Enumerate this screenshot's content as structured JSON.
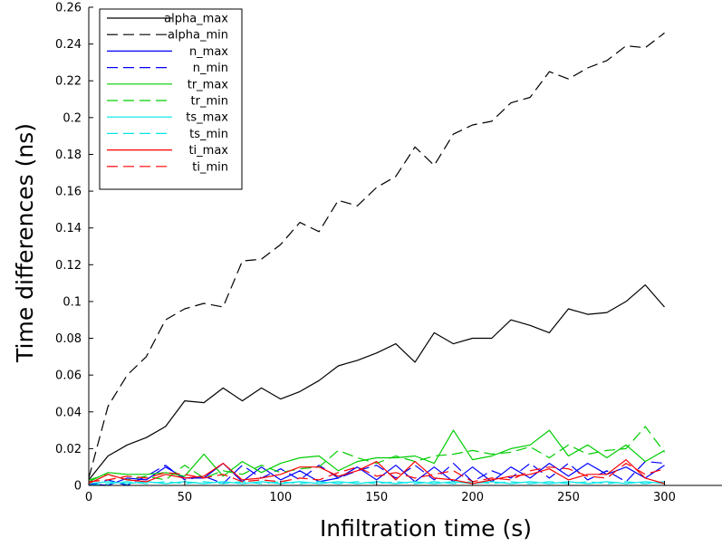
{
  "chart_data": {
    "type": "line",
    "title": "",
    "xlabel": "Infiltration time (s)",
    "ylabel": "Time differences (ns)",
    "xlim": [
      0,
      330
    ],
    "ylim": [
      0,
      0.26
    ],
    "xticks": [
      0,
      50,
      100,
      150,
      200,
      250,
      300
    ],
    "xtick_labels": [
      "0",
      "50",
      "100",
      "150",
      "200",
      "250",
      "300"
    ],
    "yticks": [
      0,
      0.02,
      0.04,
      0.06,
      0.08,
      0.1,
      0.12,
      0.14,
      0.16,
      0.18,
      0.2,
      0.22,
      0.24,
      0.26
    ],
    "ytick_labels": [
      "0",
      "0.02",
      "0.04",
      "0.06",
      "0.08",
      "0.1",
      "0.12",
      "0.14",
      "0.16",
      "0.18",
      "0.2",
      "0.22",
      "0.24",
      "0.26"
    ],
    "grid": false,
    "legend_position": "top-left",
    "x": [
      0,
      10,
      20,
      30,
      40,
      50,
      60,
      70,
      80,
      90,
      100,
      110,
      120,
      130,
      140,
      150,
      160,
      170,
      180,
      190,
      200,
      210,
      220,
      230,
      240,
      250,
      260,
      270,
      280,
      290,
      300
    ],
    "series": [
      {
        "name": "alpha_max",
        "color": "#000000",
        "dash": "solid",
        "values": [
          0.003,
          0.016,
          0.022,
          0.026,
          0.032,
          0.046,
          0.045,
          0.053,
          0.046,
          0.053,
          0.047,
          0.051,
          0.057,
          0.065,
          0.068,
          0.072,
          0.077,
          0.067,
          0.083,
          0.077,
          0.08,
          0.08,
          0.09,
          0.087,
          0.083,
          0.096,
          0.093,
          0.094,
          0.1,
          0.109,
          0.097
        ]
      },
      {
        "name": "alpha_min",
        "color": "#000000",
        "dash": "dashed",
        "values": [
          0.004,
          0.043,
          0.06,
          0.07,
          0.09,
          0.096,
          0.099,
          0.097,
          0.122,
          0.123,
          0.131,
          0.143,
          0.138,
          0.155,
          0.152,
          0.162,
          0.168,
          0.184,
          0.174,
          0.191,
          0.196,
          0.198,
          0.208,
          0.211,
          0.225,
          0.221,
          0.227,
          0.231,
          0.239,
          0.238,
          0.246
        ]
      },
      {
        "name": "n_max",
        "color": "#0000ff",
        "dash": "solid",
        "values": [
          0.001,
          0.0,
          0.004,
          0.003,
          0.01,
          0.004,
          0.004,
          0.012,
          0.002,
          0.01,
          0.003,
          0.008,
          0.002,
          0.004,
          0.01,
          0.003,
          0.011,
          0.002,
          0.01,
          0.002,
          0.01,
          0.002,
          0.01,
          0.004,
          0.012,
          0.005,
          0.012,
          0.006,
          0.01,
          0.004,
          0.011
        ]
      },
      {
        "name": "n_min",
        "color": "#0000ff",
        "dash": "dashed",
        "values": [
          0.0,
          0.003,
          0.0,
          0.005,
          0.011,
          0.003,
          0.005,
          0.001,
          0.011,
          0.004,
          0.009,
          0.003,
          0.011,
          0.004,
          0.008,
          0.011,
          0.004,
          0.011,
          0.003,
          0.012,
          0.002,
          0.008,
          0.004,
          0.012,
          0.004,
          0.012,
          0.003,
          0.008,
          0.002,
          0.013,
          0.012
        ]
      },
      {
        "name": "tr_max",
        "color": "#00cc00",
        "dash": "solid",
        "values": [
          0.002,
          0.007,
          0.006,
          0.006,
          0.007,
          0.005,
          0.017,
          0.005,
          0.013,
          0.007,
          0.012,
          0.015,
          0.016,
          0.008,
          0.013,
          0.015,
          0.015,
          0.016,
          0.012,
          0.03,
          0.014,
          0.016,
          0.02,
          0.022,
          0.03,
          0.016,
          0.022,
          0.015,
          0.022,
          0.013,
          0.019
        ]
      },
      {
        "name": "tr_min",
        "color": "#00cc00",
        "dash": "dashed",
        "values": [
          0.003,
          0.006,
          0.003,
          0.005,
          0.003,
          0.011,
          0.004,
          0.008,
          0.006,
          0.011,
          0.007,
          0.009,
          0.01,
          0.019,
          0.015,
          0.012,
          0.016,
          0.013,
          0.016,
          0.017,
          0.019,
          0.017,
          0.018,
          0.021,
          0.015,
          0.022,
          0.017,
          0.019,
          0.02,
          0.032,
          0.018
        ]
      },
      {
        "name": "ts_max",
        "color": "#00e5e5",
        "dash": "solid",
        "values": [
          0.001,
          0.002,
          0.001,
          0.002,
          0.001,
          0.002,
          0.001,
          0.002,
          0.001,
          0.002,
          0.001,
          0.002,
          0.001,
          0.002,
          0.001,
          0.002,
          0.001,
          0.002,
          0.001,
          0.002,
          0.001,
          0.002,
          0.001,
          0.002,
          0.001,
          0.002,
          0.001,
          0.002,
          0.001,
          0.002,
          0.001
        ]
      },
      {
        "name": "ts_min",
        "color": "#00e5e5",
        "dash": "dashed",
        "values": [
          0.0,
          0.001,
          0.002,
          0.001,
          0.002,
          0.001,
          0.002,
          0.001,
          0.002,
          0.001,
          0.002,
          0.001,
          0.002,
          0.001,
          0.002,
          0.001,
          0.002,
          0.001,
          0.002,
          0.001,
          0.002,
          0.001,
          0.002,
          0.001,
          0.002,
          0.001,
          0.002,
          0.001,
          0.002,
          0.001,
          0.002
        ]
      },
      {
        "name": "ti_max",
        "color": "#ff0000",
        "dash": "solid",
        "values": [
          0.001,
          0.006,
          0.003,
          0.002,
          0.006,
          0.004,
          0.005,
          0.012,
          0.003,
          0.004,
          0.006,
          0.01,
          0.01,
          0.005,
          0.008,
          0.013,
          0.003,
          0.013,
          0.004,
          0.003,
          0.001,
          0.003,
          0.005,
          0.006,
          0.009,
          0.003,
          0.006,
          0.006,
          0.014,
          0.004,
          0.001
        ]
      },
      {
        "name": "ti_min",
        "color": "#ff0000",
        "dash": "dashed",
        "values": [
          0.002,
          0.003,
          0.005,
          0.004,
          0.007,
          0.006,
          0.004,
          0.006,
          0.002,
          0.003,
          0.002,
          0.004,
          0.003,
          0.007,
          0.01,
          0.005,
          0.007,
          0.004,
          0.006,
          0.008,
          0.002,
          0.004,
          0.003,
          0.008,
          0.01,
          0.009,
          0.005,
          0.004,
          0.012,
          0.006,
          0.009
        ]
      }
    ]
  }
}
